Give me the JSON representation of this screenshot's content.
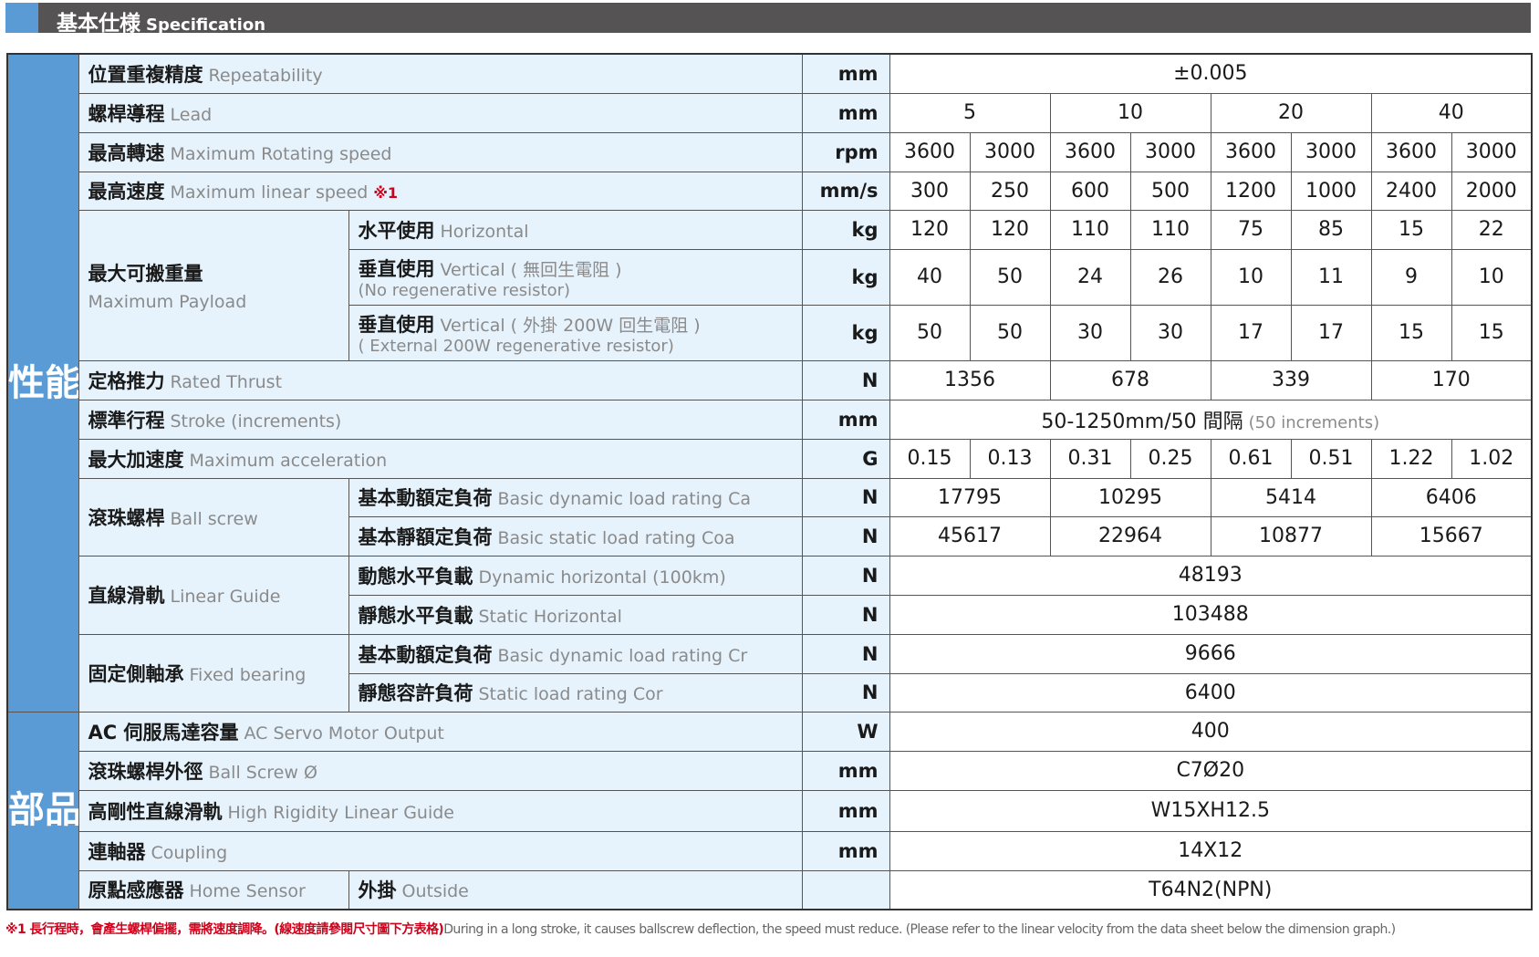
{
  "header": {
    "title_zh": "基本仕様",
    "title_en": "Specification"
  },
  "sections": [
    {
      "title": "性能",
      "rows": [
        {
          "zh": "位置重複精度",
          "en": "Repeatability",
          "unit": "mm",
          "values": [
            "±0.005"
          ]
        },
        {
          "zh": "螺桿導程",
          "en": "Lead",
          "unit": "mm",
          "values": [
            "5",
            "10",
            "20",
            "40"
          ]
        },
        {
          "zh": "最高轉速",
          "en": "Maximum Rotating speed",
          "unit": "rpm",
          "values": [
            "3600",
            "3000",
            "3600",
            "3000",
            "3600",
            "3000",
            "3600",
            "3000"
          ]
        },
        {
          "zh": "最高速度",
          "en": "Maximum linear speed",
          "mark": "※1",
          "unit": "mm/s",
          "values": [
            "300",
            "250",
            "600",
            "500",
            "1200",
            "1000",
            "2400",
            "2000"
          ]
        },
        {
          "zh": "最大可搬重量",
          "en": "Maximum Payload",
          "subrows": [
            {
              "zh": "水平使用",
              "en": "Horizontal",
              "unit": "kg",
              "values": [
                "120",
                "120",
                "110",
                "110",
                "75",
                "85",
                "15",
                "22"
              ]
            },
            {
              "zh": "垂直使用",
              "en": "Vertical ( 無回生電阻 )",
              "en2": "(No regenerative resistor)",
              "unit": "kg",
              "values": [
                "40",
                "50",
                "24",
                "26",
                "10",
                "11",
                "9",
                "10"
              ]
            },
            {
              "zh": "垂直使用",
              "en": "Vertical ( 外掛 200W 回生電阻 )",
              "en2": "( External 200W regenerative resistor)",
              "unit": "kg",
              "values": [
                "50",
                "50",
                "30",
                "30",
                "17",
                "17",
                "15",
                "15"
              ]
            }
          ]
        },
        {
          "zh": "定格推力",
          "en": "Rated Thrust",
          "unit": "N",
          "values": [
            "1356",
            "678",
            "339",
            "170"
          ]
        },
        {
          "zh": "標準行程",
          "en": "Stroke (increments)",
          "unit": "mm",
          "values": [
            "50-1250mm/50 間隔"
          ],
          "value_note": "(50 increments)"
        },
        {
          "zh": "最大加速度",
          "en": "Maximum acceleration",
          "unit": "G",
          "values": [
            "0.15",
            "0.13",
            "0.31",
            "0.25",
            "0.61",
            "0.51",
            "1.22",
            "1.02"
          ]
        },
        {
          "zh": "滾珠螺桿",
          "en": "Ball screw",
          "inline": true,
          "subrows": [
            {
              "zh": "基本動額定負荷",
              "en": "Basic dynamic load rating Ca",
              "unit": "N",
              "values": [
                "17795",
                "10295",
                "5414",
                "6406"
              ]
            },
            {
              "zh": "基本靜額定負荷",
              "en": "Basic static load rating Coa",
              "unit": "N",
              "values": [
                "45617",
                "22964",
                "10877",
                "15667"
              ]
            }
          ]
        },
        {
          "zh": "直線滑軌",
          "en": "Linear Guide",
          "inline": true,
          "subrows": [
            {
              "zh": "動態水平負載",
              "en": "Dynamic horizontal (100km)",
              "unit": "N",
              "values": [
                "48193"
              ]
            },
            {
              "zh": "靜態水平負載",
              "en": "Static Horizontal",
              "unit": "N",
              "values": [
                "103488"
              ]
            }
          ]
        },
        {
          "zh": "固定側軸承",
          "en": "Fixed bearing",
          "inline": true,
          "subrows": [
            {
              "zh": "基本動額定負荷",
              "en": "Basic dynamic load rating Cr",
              "unit": "N",
              "values": [
                "9666"
              ]
            },
            {
              "zh": "靜態容許負荷",
              "en": "Static load rating Cor",
              "unit": "N",
              "values": [
                "6400"
              ]
            }
          ]
        }
      ]
    },
    {
      "title": "部品",
      "rows": [
        {
          "zh": "AC 伺服馬達容量",
          "en": "AC Servo Motor Output",
          "unit": "W",
          "values": [
            "400"
          ]
        },
        {
          "zh": "滾珠螺桿外徑",
          "en": "Ball Screw Ø",
          "unit": "mm",
          "values": [
            "C7Ø20"
          ]
        },
        {
          "zh": "高剛性直線滑軌",
          "en": "High Rigidity Linear Guide",
          "unit": "mm",
          "values": [
            "W15XH12.5"
          ]
        },
        {
          "zh": "連軸器",
          "en": "Coupling",
          "unit": "mm",
          "values": [
            "14X12"
          ]
        },
        {
          "zh": "原點感應器",
          "en": "Home Sensor",
          "inline": true,
          "subrows": [
            {
              "zh": "外掛",
              "en": "Outside",
              "unit": "",
              "values": [
                "T64N2(NPN)"
              ]
            }
          ]
        }
      ]
    }
  ],
  "footnote": {
    "zh": "※1 長行程時，會產生螺桿偏擺，需將速度調降。(線速度請參閱尺寸圖下方表格)",
    "en": "During in a long stroke, it causes ballscrew deflection, the speed must reduce. (Please refer to the linear velocity from the data sheet below the dimension graph.)"
  },
  "colors": {
    "header_bg": "#555354",
    "accent_blue": "#5b9bd5",
    "label_bg": "#e6f3fc",
    "footnote_red": "#d0021b"
  }
}
